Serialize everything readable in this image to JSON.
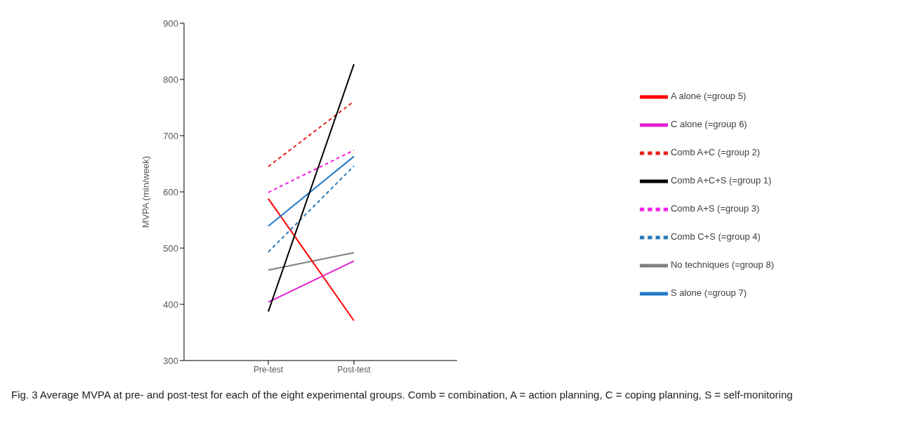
{
  "chart_data": {
    "type": "line",
    "ylabel": "MVPA (min/week)",
    "categories": [
      "Pre-test",
      "Post-test"
    ],
    "ylim": [
      300,
      900
    ],
    "yticks": [
      300,
      400,
      500,
      600,
      700,
      800,
      900
    ],
    "grid": false,
    "legend": "right",
    "marker": "none",
    "series": [
      {
        "name": "No techniques (=group 8)",
        "color": "#808080",
        "values": [
          461,
          492
        ],
        "line_style": "solid"
      },
      {
        "name": "A alone (=group 5)",
        "color": "#ff0000",
        "values": [
          588,
          371
        ],
        "line_style": "solid"
      },
      {
        "name": "C alone (=group 6)",
        "color": "#e020d0",
        "values": [
          404,
          477
        ],
        "line_style": "solid"
      },
      {
        "name": "S alone (=group 7)",
        "color": "#1f78c8",
        "values": [
          539,
          663
        ],
        "line_style": "solid"
      },
      {
        "name": "Comb A+C (=group 2)",
        "color": "#e8201c",
        "values": [
          645,
          761
        ],
        "line_style": "dashed"
      },
      {
        "name": "Comb A+S (=group 3)",
        "color": "#f020e8",
        "values": [
          599,
          674
        ],
        "line_style": "dashed"
      },
      {
        "name": "Comb C+S (=group 4)",
        "color": "#2a7ab8",
        "values": [
          493,
          646
        ],
        "line_style": "dashed"
      },
      {
        "name": "Comb A+C+S (=group 1)",
        "color": "#000000",
        "values": [
          387,
          827
        ],
        "line_style": "solid"
      }
    ],
    "annotations": [
      "Fig. 3 Average MVPA at pre- and post-test for each of the eight experimental groups. Comb = combination, A = action planning, C = coping planning, S = self-monitoring"
    ]
  }
}
